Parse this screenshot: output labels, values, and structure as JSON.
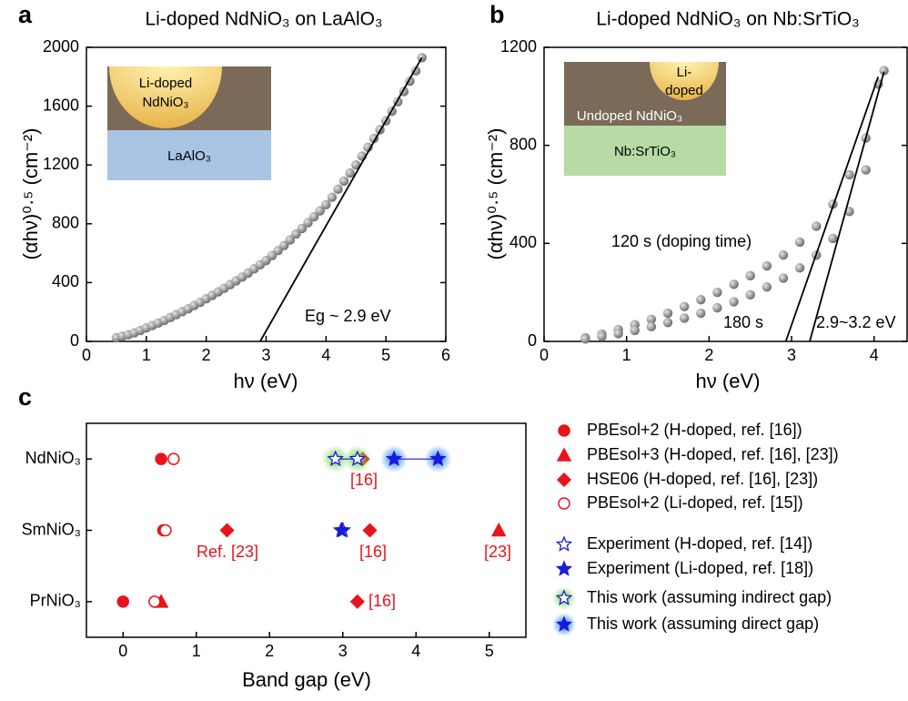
{
  "chart_data": [
    {
      "type": "scatter",
      "panel_label": "a",
      "title": "Li-doped NdNiO₃ on LaAlO₃",
      "x_label": "hν (eV)",
      "y_label": "(αhν)⁰·⁵ (cm⁻²)",
      "xlim": [
        0,
        6
      ],
      "ylim": [
        0,
        2000
      ],
      "xticks": [
        0,
        1,
        2,
        3,
        4,
        5,
        6
      ],
      "yticks": [
        0,
        400,
        800,
        1200,
        1600,
        2000
      ],
      "inset_labels": [
        "Li-doped",
        "NdNiO₃",
        "LaAlO₃"
      ],
      "annotations": [
        "Eg ~ 2.9 eV"
      ],
      "series": [
        {
          "mode": "markers",
          "color": "#8a8a8a",
          "x": [
            0.5,
            0.6,
            0.7,
            0.8,
            0.9,
            1.0,
            1.1,
            1.2,
            1.3,
            1.4,
            1.5,
            1.6,
            1.7,
            1.8,
            1.9,
            2.0,
            2.1,
            2.2,
            2.3,
            2.4,
            2.5,
            2.6,
            2.7,
            2.8,
            2.9,
            3.0,
            3.1,
            3.2,
            3.3,
            3.4,
            3.5,
            3.6,
            3.7,
            3.8,
            3.9,
            4.0,
            4.1,
            4.2,
            4.3,
            4.4,
            4.5,
            4.6,
            4.7,
            4.8,
            4.9,
            5.0,
            5.1,
            5.2,
            5.3,
            5.4,
            5.5,
            5.6
          ],
          "values": [
            25,
            35,
            45,
            58,
            75,
            92,
            108,
            125,
            143,
            162,
            182,
            202,
            222,
            244,
            266,
            290,
            313,
            337,
            361,
            386,
            412,
            438,
            465,
            493,
            521,
            550,
            584,
            618,
            652,
            690,
            730,
            768,
            808,
            848,
            888,
            930,
            980,
            1035,
            1090,
            1145,
            1200,
            1260,
            1320,
            1380,
            1440,
            1500,
            1565,
            1630,
            1700,
            1770,
            1840,
            1930
          ]
        },
        {
          "mode": "line",
          "color": "#000000",
          "x": [
            2.9,
            5.6
          ],
          "values": [
            0,
            1930
          ]
        }
      ]
    },
    {
      "type": "scatter",
      "panel_label": "b",
      "title": "Li-doped NdNiO₃ on Nb:SrTiO₃",
      "x_label": "hν (eV)",
      "y_label": "(αhν)⁰·⁵ (cm⁻²)",
      "xlim": [
        0,
        4.4
      ],
      "ylim": [
        0,
        1200
      ],
      "xticks": [
        0,
        1,
        2,
        3,
        4
      ],
      "yticks": [
        0,
        400,
        800,
        1200
      ],
      "inset_labels": [
        "Li-",
        "doped",
        "Undoped NdNiO₃",
        "Nb:SrTiO₃"
      ],
      "annotations": [
        "120 s (doping time)",
        "180 s",
        "2.9~3.2 eV"
      ],
      "series": [
        {
          "mode": "markers",
          "color": "#8a8a8a",
          "x": [
            0.5,
            0.7,
            0.9,
            1.1,
            1.3,
            1.5,
            1.7,
            1.9,
            2.1,
            2.3,
            2.5,
            2.7,
            2.9,
            3.1,
            3.3,
            3.5,
            3.7,
            3.9,
            4.05
          ],
          "values": [
            15,
            30,
            48,
            68,
            90,
            115,
            142,
            170,
            200,
            233,
            268,
            308,
            352,
            405,
            470,
            560,
            680,
            830,
            1050
          ]
        },
        {
          "mode": "markers",
          "color": "#8a8a8a",
          "x": [
            0.5,
            0.7,
            0.9,
            1.1,
            1.3,
            1.5,
            1.7,
            1.9,
            2.1,
            2.3,
            2.5,
            2.7,
            2.9,
            3.1,
            3.3,
            3.5,
            3.7,
            3.9,
            4.12
          ],
          "values": [
            10,
            20,
            32,
            45,
            60,
            77,
            95,
            115,
            137,
            162,
            190,
            222,
            258,
            300,
            352,
            420,
            530,
            700,
            1105
          ]
        },
        {
          "mode": "line",
          "color": "#000000",
          "x": [
            2.93,
            4.05
          ],
          "values": [
            0,
            1080
          ]
        },
        {
          "mode": "line",
          "color": "#000000",
          "x": [
            3.22,
            4.12
          ],
          "values": [
            0,
            1100
          ]
        }
      ]
    },
    {
      "type": "scatter",
      "panel_label": "c",
      "x_label": "Band gap (eV)",
      "categories": [
        "NdNiO₃",
        "SmNiO₃",
        "PrNiO₃"
      ],
      "xlim": [
        -0.5,
        5.5
      ],
      "xticks": [
        0,
        1,
        2,
        3,
        4,
        5
      ],
      "annotations": [
        "[16]",
        "Ref. [23]",
        "[16]",
        "[23]",
        "[16]"
      ],
      "series": [
        {
          "name": "PBEsol+2 (H-doped, ref. [16])",
          "color": "#e8141b",
          "marker": "circle",
          "filled": true,
          "category": [
            "NdNiO₃",
            "SmNiO₃",
            "PrNiO₃"
          ],
          "values": [
            0.52,
            0.55,
            0
          ]
        },
        {
          "name": "PBEsol+3 (H-doped, ref. [16], [23])",
          "color": "#e8141b",
          "marker": "triangle",
          "filled": true,
          "category": [
            "SmNiO₃",
            "PrNiO₃"
          ],
          "values": [
            5.13,
            0.52
          ]
        },
        {
          "name": "HSE06 (H-doped, ref. [16], [23])",
          "color": "#e8141b",
          "marker": "diamond",
          "filled": true,
          "category": [
            "NdNiO₃",
            "SmNiO₃",
            "SmNiO₃",
            "PrNiO₃"
          ],
          "values": [
            3.27,
            1.42,
            3.37,
            3.2
          ]
        },
        {
          "name": "PBEsol+2 (Li-doped, ref. [15])",
          "color": "#e8141b",
          "marker": "circle",
          "filled": false,
          "category": [
            "NdNiO₃",
            "SmNiO₃",
            "PrNiO₃"
          ],
          "values": [
            0.69,
            0.58,
            0.43
          ]
        },
        {
          "name": "Experiment (H-doped, ref. [14])",
          "color": "#1a1adb",
          "marker": "star",
          "filled": false,
          "category": [
            "NdNiO₃",
            "SmNiO₃"
          ],
          "values": [
            3.2,
            3.0
          ]
        },
        {
          "name": "Experiment (Li-doped, ref. [18])",
          "color": "#1a1adb",
          "marker": "star",
          "filled": true,
          "category": [
            "SmNiO₃"
          ],
          "values": [
            2.98
          ]
        },
        {
          "name": "This work (assuming indirect gap)",
          "color": "#1a1adb",
          "marker": "star",
          "filled": false,
          "glow": "#7ed957",
          "connect": true,
          "category": [
            "NdNiO₃",
            "NdNiO₃"
          ],
          "values": [
            2.9,
            3.2
          ]
        },
        {
          "name": "This work (assuming direct gap)",
          "color": "#1a1adb",
          "marker": "star",
          "filled": true,
          "glow": "#3d8bff",
          "connect": true,
          "category": [
            "NdNiO₃",
            "NdNiO₃"
          ],
          "values": [
            3.7,
            4.3
          ]
        }
      ]
    }
  ]
}
